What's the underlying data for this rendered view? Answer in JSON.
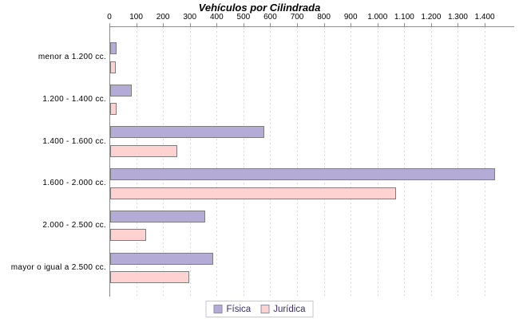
{
  "title": "Vehículos por Cilindrada",
  "chart_data": {
    "type": "bar",
    "orientation": "horizontal",
    "title": "Vehículos por Cilindrada",
    "xlabel": "",
    "ylabel": "",
    "categories": [
      "menor a 1.200 cc.",
      "1.200 - 1.400 cc.",
      "1.400 - 1.600 cc.",
      "1.600 - 2.000 cc.",
      "2.000 - 2.500 cc.",
      "mayor o igual a 2.500 cc."
    ],
    "series": [
      {
        "name": "Física",
        "fill": "#b4abd6",
        "border": "#7d7d7d",
        "values": [
          25,
          80,
          575,
          1435,
          355,
          385
        ]
      },
      {
        "name": "Jurídica",
        "fill": "#ffd2d2",
        "border": "#7d7d7d",
        "values": [
          22,
          25,
          250,
          1065,
          135,
          295
        ]
      }
    ],
    "x_ticks": [
      0,
      100,
      200,
      300,
      400,
      500,
      600,
      700,
      800,
      900,
      1000,
      1100,
      1200,
      1300,
      1400
    ],
    "x_tick_labels": [
      "0",
      "100",
      "200",
      "300",
      "400",
      "500",
      "600",
      "700",
      "800",
      "900",
      "1.000",
      "1.100",
      "1.200",
      "1.300",
      "1.400"
    ],
    "xlim": [
      0,
      1510
    ],
    "grid": true,
    "grid_style": "dashed-vertical",
    "legend_position": "bottom-center",
    "colors": {
      "axis": "#8c8c8c",
      "grid": "#d9d9d9",
      "tick_text": "#000000",
      "category_text": "#000000",
      "legend_text": "#3a2d6e",
      "legend_border": "#c8c8cf",
      "background": "#ffffff"
    }
  }
}
